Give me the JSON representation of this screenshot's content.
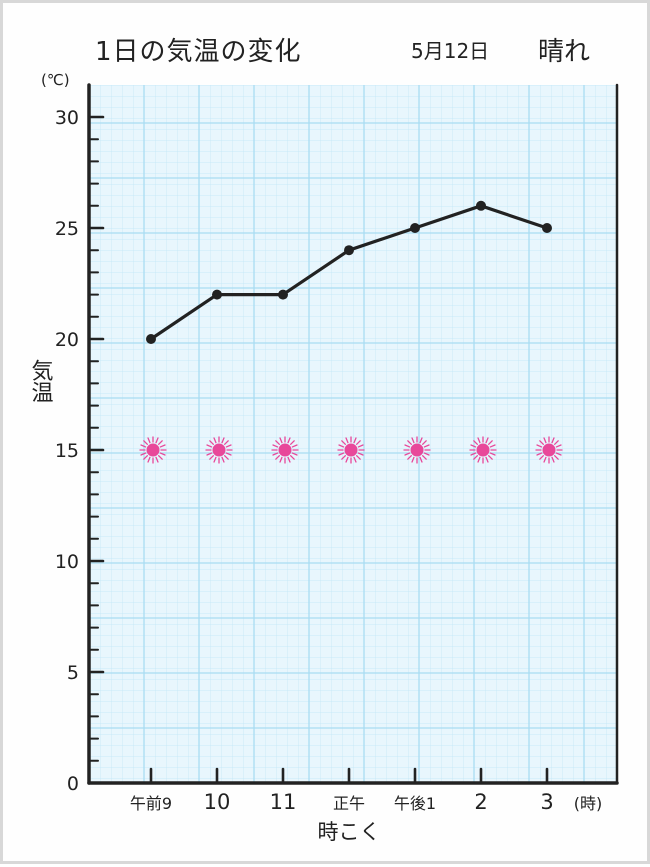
{
  "chart_data": {
    "type": "line",
    "title": "1日の気温の変化",
    "date": "5月12日",
    "weather": "晴れ",
    "y_unit": "(℃)",
    "ylabel": "気温",
    "xlabel": "時こく",
    "x_unit": "(時)",
    "categories": [
      "午前9",
      "10",
      "11",
      "正午",
      "午後1",
      "2",
      "3"
    ],
    "values": [
      20,
      22,
      22,
      24,
      25,
      26,
      25
    ],
    "ylim": [
      0,
      30
    ],
    "yticks": [
      "0",
      "5",
      "10",
      "15",
      "20",
      "25",
      "30"
    ],
    "weather_marks": {
      "icon": "sun-icon",
      "level": 15,
      "color": "#e8489a"
    },
    "grid": true,
    "colors": {
      "grid": "#a9dcf3",
      "background": "#e8f6fd",
      "line": "#222222"
    }
  }
}
